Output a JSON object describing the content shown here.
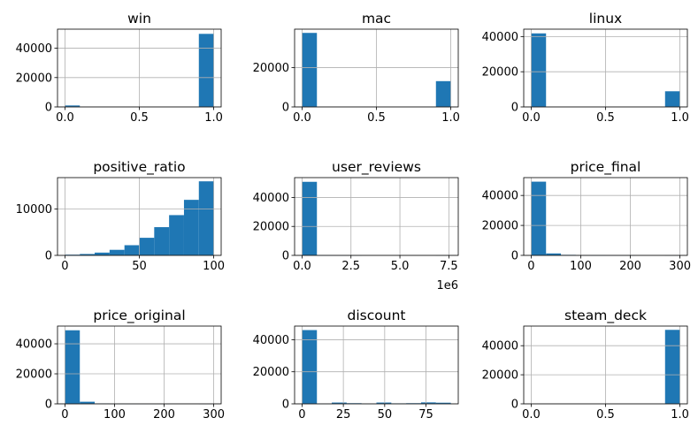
{
  "chart_data": [
    {
      "type": "bar",
      "title": "win",
      "xlim": [
        -0.05,
        1.05
      ],
      "ylim": [
        0,
        53000
      ],
      "xticks": [
        0.0,
        0.5,
        1.0
      ],
      "xtick_labels": [
        "0.0",
        "0.5",
        "1.0"
      ],
      "yticks": [
        0,
        20000,
        40000
      ],
      "ytick_labels": [
        "0",
        "20000",
        "40000"
      ],
      "bin_edges": [
        0.0,
        0.1,
        0.2,
        0.3,
        0.4,
        0.5,
        0.6,
        0.7,
        0.8,
        0.9,
        1.0
      ],
      "values": [
        1000,
        0,
        0,
        0,
        0,
        0,
        0,
        0,
        0,
        49800
      ],
      "grid": true
    },
    {
      "type": "bar",
      "title": "mac",
      "xlim": [
        -0.05,
        1.05
      ],
      "ylim": [
        0,
        39500
      ],
      "xticks": [
        0.0,
        0.5,
        1.0
      ],
      "xtick_labels": [
        "0.0",
        "0.5",
        "1.0"
      ],
      "yticks": [
        0,
        20000
      ],
      "ytick_labels": [
        "0",
        "20000"
      ],
      "bin_edges": [
        0.0,
        0.1,
        0.2,
        0.3,
        0.4,
        0.5,
        0.6,
        0.7,
        0.8,
        0.9,
        1.0
      ],
      "values": [
        37600,
        0,
        0,
        0,
        0,
        0,
        0,
        0,
        0,
        13100
      ],
      "grid": true
    },
    {
      "type": "bar",
      "title": "linux",
      "xlim": [
        -0.05,
        1.05
      ],
      "ylim": [
        0,
        44200
      ],
      "xticks": [
        0.0,
        0.5,
        1.0
      ],
      "xtick_labels": [
        "0.0",
        "0.5",
        "1.0"
      ],
      "yticks": [
        0,
        20000,
        40000
      ],
      "ytick_labels": [
        "0",
        "20000",
        "40000"
      ],
      "bin_edges": [
        0.0,
        0.1,
        0.2,
        0.3,
        0.4,
        0.5,
        0.6,
        0.7,
        0.8,
        0.9,
        1.0
      ],
      "values": [
        41800,
        0,
        0,
        0,
        0,
        0,
        0,
        0,
        0,
        8900
      ],
      "grid": true
    },
    {
      "type": "bar",
      "title": "positive_ratio",
      "xlim": [
        -5,
        105
      ],
      "ylim": [
        0,
        16800
      ],
      "xticks": [
        0,
        50,
        100
      ],
      "xtick_labels": [
        "0",
        "50",
        "100"
      ],
      "yticks": [
        0,
        10000
      ],
      "ytick_labels": [
        "0",
        "10000"
      ],
      "bin_edges": [
        0,
        10,
        20,
        30,
        40,
        50,
        60,
        70,
        80,
        90,
        100
      ],
      "values": [
        150,
        300,
        600,
        1200,
        2200,
        3800,
        6100,
        8700,
        12000,
        16000
      ],
      "grid": true
    },
    {
      "type": "bar",
      "title": "user_reviews",
      "xlim": [
        -380000,
        7980000
      ],
      "ylim": [
        0,
        53700
      ],
      "xticks": [
        0,
        2500000,
        5000000,
        7500000
      ],
      "xtick_labels": [
        "0.0",
        "2.5",
        "5.0",
        "7.5"
      ],
      "x_offset_label": "1e6",
      "yticks": [
        0,
        20000,
        40000
      ],
      "ytick_labels": [
        "0",
        "20000",
        "40000"
      ],
      "bin_edges": [
        0,
        760000,
        1520000,
        2280000,
        3040000,
        3800000,
        4560000,
        5320000,
        6080000,
        6840000,
        7600000
      ],
      "values": [
        50800,
        30,
        10,
        5,
        0,
        0,
        0,
        0,
        0,
        3
      ],
      "grid": true
    },
    {
      "type": "bar",
      "title": "price_final",
      "xlim": [
        -15,
        315
      ],
      "ylim": [
        0,
        51900
      ],
      "xticks": [
        0,
        100,
        200,
        300
      ],
      "xtick_labels": [
        "0",
        "100",
        "200",
        "300"
      ],
      "yticks": [
        0,
        20000,
        40000
      ],
      "ytick_labels": [
        "0",
        "20000",
        "40000"
      ],
      "bin_edges": [
        0,
        30,
        60,
        90,
        120,
        150,
        180,
        210,
        240,
        270,
        300
      ],
      "values": [
        49200,
        1300,
        350,
        100,
        30,
        10,
        5,
        0,
        0,
        5
      ],
      "grid": true
    },
    {
      "type": "bar",
      "title": "price_original",
      "xlim": [
        -15,
        315
      ],
      "ylim": [
        0,
        51800
      ],
      "xticks": [
        0,
        100,
        200,
        300
      ],
      "xtick_labels": [
        "0",
        "100",
        "200",
        "300"
      ],
      "yticks": [
        0,
        20000,
        40000
      ],
      "ytick_labels": [
        "0",
        "20000",
        "40000"
      ],
      "bin_edges": [
        0,
        30,
        60,
        90,
        120,
        150,
        180,
        210,
        240,
        270,
        300
      ],
      "values": [
        49000,
        1400,
        300,
        100,
        30,
        10,
        5,
        0,
        0,
        5
      ],
      "grid": true
    },
    {
      "type": "bar",
      "title": "discount",
      "xlim": [
        -4.5,
        94.5
      ],
      "ylim": [
        0,
        48500
      ],
      "xticks": [
        0,
        25,
        50,
        75
      ],
      "xtick_labels": [
        "0",
        "25",
        "50",
        "75"
      ],
      "yticks": [
        0,
        20000,
        40000
      ],
      "ytick_labels": [
        "0",
        "20000",
        "40000"
      ],
      "bin_edges": [
        0,
        9,
        18,
        27,
        36,
        45,
        54,
        63,
        72,
        81,
        90
      ],
      "values": [
        46000,
        150,
        800,
        400,
        150,
        800,
        300,
        400,
        900,
        700
      ],
      "grid": true
    },
    {
      "type": "bar",
      "title": "steam_deck",
      "xlim": [
        -0.05,
        1.05
      ],
      "ylim": [
        0,
        53500
      ],
      "xticks": [
        0.0,
        0.5,
        1.0
      ],
      "xtick_labels": [
        "0.0",
        "0.5",
        "1.0"
      ],
      "yticks": [
        0,
        20000,
        40000
      ],
      "ytick_labels": [
        "0",
        "20000",
        "40000"
      ],
      "bin_edges": [
        0.0,
        0.1,
        0.2,
        0.3,
        0.4,
        0.5,
        0.6,
        0.7,
        0.8,
        0.9,
        1.0
      ],
      "values": [
        0,
        0,
        0,
        0,
        0,
        0,
        0,
        0,
        0,
        50900
      ],
      "grid": true
    }
  ],
  "colors": {
    "bar": "#1f77b4",
    "grid": "#b0b0b0",
    "axes": "#000000",
    "background": "#ffffff"
  }
}
